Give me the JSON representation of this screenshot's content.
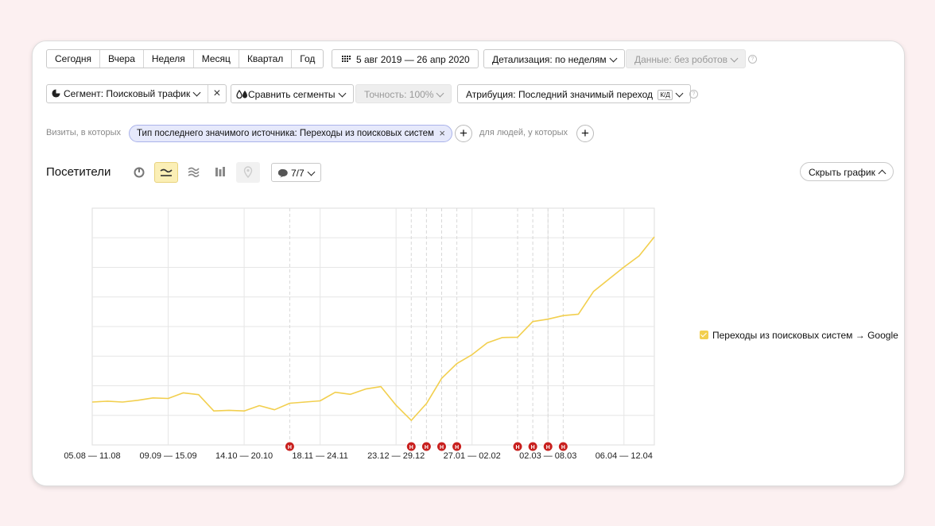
{
  "period_buttons": [
    "Сегодня",
    "Вчера",
    "Неделя",
    "Месяц",
    "Квартал",
    "Год"
  ],
  "date_range": "5 авг 2019 — 26 апр 2020",
  "detail": "Детализация: по неделям",
  "data_filter": "Данные: без роботов",
  "segment": "Сегмент: Поисковый трафик",
  "compare": "Сравнить сегменты",
  "accuracy": "Точность: 100%",
  "attribution": "Атрибуция: Последний значимый переход",
  "attribution_badge": "К/Д",
  "visits_label": "Визиты, в которых",
  "filter_tag": "Тип последнего значимого источника: Переходы из поисковых систем",
  "people_label": "для людей, у которых",
  "chart_title": "Посетители",
  "notes_count": "7/7",
  "hide_chart": "Скрыть график",
  "colors": {
    "line": "#f2cf4e",
    "marker": "#c8201e",
    "active_view": "#fbefb6"
  },
  "chart_data": {
    "type": "line",
    "x_tick_labels": [
      "05.08 — 11.08",
      "09.09 — 15.09",
      "14.10 — 20.10",
      "18.11 — 24.11",
      "23.12 — 29.12",
      "27.01 — 02.02",
      "02.03 — 08.03",
      "06.04 — 12.04"
    ],
    "series": [
      {
        "name": "Переходы из поисковых систем → Google",
        "values": [
          14.5,
          14.8,
          14.5,
          15.1,
          15.9,
          15.7,
          17.6,
          17.0,
          11.5,
          11.7,
          11.5,
          13.3,
          11.9,
          14.1,
          14.5,
          14.9,
          17.8,
          17.1,
          18.9,
          19.7,
          13.4,
          8.3,
          14.0,
          22.5,
          27.5,
          30.5,
          34.5,
          36.3,
          36.4,
          41.7,
          42.5,
          43.7,
          44.2,
          51.9,
          56.0,
          60.1,
          63.9,
          70.3
        ]
      }
    ],
    "ylim": [
      0,
      80
    ],
    "grid": true,
    "legend_position": "right",
    "annotation_marker": "Н",
    "annotation_weeks": [
      13,
      21,
      22,
      23,
      24,
      28,
      29,
      30,
      31
    ]
  }
}
